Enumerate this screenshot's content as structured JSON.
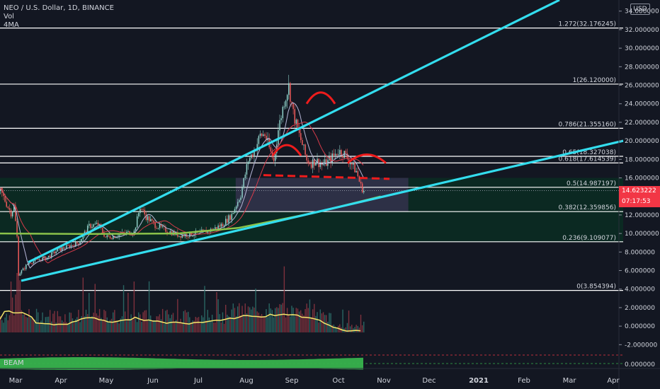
{
  "legend": {
    "title": "NEO / U.S. Dollar, 1D, BINANCE",
    "vol": "Vol",
    "ma": "4MA"
  },
  "beam_label": "BEAM",
  "currency": "USD",
  "current_price": "14.623222",
  "countdown": "07:17:53",
  "colors": {
    "background": "#131722",
    "up_candle": "#8fd1c9",
    "down_candle": "#ef5a5a",
    "trendline": "#33ddee",
    "pattern": "#ee1c1c",
    "fib_line": "#ffffff",
    "ma_200": "#8bc34a",
    "ma_red": "#d63b4a",
    "ma_light": "#b6b6d8",
    "vol_ma": "#f5e66a",
    "zone_green": "#0b2b22",
    "zone_purple": "#34314c",
    "price_badge": "#f23645",
    "beam_green": "#37b24d"
  },
  "chart_data": {
    "type": "candlestick",
    "title": "NEO / U.S. Dollar, 1D, BINANCE",
    "ylabel": "USD",
    "ylim": [
      -3.2,
      35.2
    ],
    "x_ticks": [
      "Mar",
      "Apr",
      "May",
      "Jun",
      "Jul",
      "Aug",
      "Sep",
      "Oct",
      "Nov",
      "Dec",
      "2021",
      "Feb",
      "Mar",
      "Apr"
    ],
    "y_ticks": [
      "34.000000",
      "32.000000",
      "30.000000",
      "28.000000",
      "26.000000",
      "24.000000",
      "22.000000",
      "20.000000",
      "18.000000",
      "16.000000",
      "14.000000",
      "12.000000",
      "10.000000",
      "8.000000",
      "6.000000",
      "4.000000",
      "2.000000",
      "0.000000",
      "-2.000000"
    ],
    "fib_levels": [
      {
        "label": "1.272(32.176245)",
        "value": 32.176245
      },
      {
        "label": "1(26.120000)",
        "value": 26.12
      },
      {
        "label": "0.786(21.355160)",
        "value": 21.35516
      },
      {
        "label": "0.65(18.327038)",
        "value": 18.327038
      },
      {
        "label": "0.618(17.614539)",
        "value": 17.614539
      },
      {
        "label": "0.5(14.987197)",
        "value": 14.987197
      },
      {
        "label": "0.382(12.359856)",
        "value": 12.359856
      },
      {
        "label": "0.236(9.109077)",
        "value": 9.109077
      },
      {
        "label": "0(3.854394)",
        "value": 3.854394
      }
    ],
    "price_path": [
      {
        "x": "Mar 1",
        "y": 14.6
      },
      {
        "x": "Mar 5",
        "y": 13.2
      },
      {
        "x": "Mar 8",
        "y": 12.2
      },
      {
        "x": "Mar 10",
        "y": 12.9
      },
      {
        "x": "Mar 12",
        "y": 9.6
      },
      {
        "x": "Mar 13",
        "y": 5.6
      },
      {
        "x": "Mar 16",
        "y": 6.1
      },
      {
        "x": "Mar 20",
        "y": 6.9
      },
      {
        "x": "Mar 25",
        "y": 7.1
      },
      {
        "x": "Apr 1",
        "y": 7.4
      },
      {
        "x": "Apr 8",
        "y": 8.2
      },
      {
        "x": "Apr 15",
        "y": 8.6
      },
      {
        "x": "Apr 22",
        "y": 9.0
      },
      {
        "x": "Apr 29",
        "y": 10.8
      },
      {
        "x": "May 5",
        "y": 11.0
      },
      {
        "x": "May 10",
        "y": 9.6
      },
      {
        "x": "May 15",
        "y": 9.7
      },
      {
        "x": "May 22",
        "y": 10.0
      },
      {
        "x": "May 29",
        "y": 10.2
      },
      {
        "x": "Jun 2",
        "y": 12.9
      },
      {
        "x": "Jun 6",
        "y": 11.8
      },
      {
        "x": "Jun 12",
        "y": 10.9
      },
      {
        "x": "Jun 20",
        "y": 10.3
      },
      {
        "x": "Jun 28",
        "y": 9.8
      },
      {
        "x": "Jul 5",
        "y": 9.9
      },
      {
        "x": "Jul 12",
        "y": 10.1
      },
      {
        "x": "Jul 20",
        "y": 10.4
      },
      {
        "x": "Jul 27",
        "y": 11.0
      },
      {
        "x": "Aug 2",
        "y": 12.0
      },
      {
        "x": "Aug 8",
        "y": 14.2
      },
      {
        "x": "Aug 13",
        "y": 17.9
      },
      {
        "x": "Aug 17",
        "y": 18.9
      },
      {
        "x": "Aug 21",
        "y": 20.6
      },
      {
        "x": "Aug 24",
        "y": 20.7
      },
      {
        "x": "Aug 27",
        "y": 19.2
      },
      {
        "x": "Aug 30",
        "y": 17.8
      },
      {
        "x": "Sep 2",
        "y": 21.2
      },
      {
        "x": "Sep 6",
        "y": 24.3
      },
      {
        "x": "Sep 9",
        "y": 25.9
      },
      {
        "x": "Sep 12",
        "y": 23.0
      },
      {
        "x": "Sep 15",
        "y": 21.1
      },
      {
        "x": "Sep 18",
        "y": 19.6
      },
      {
        "x": "Sep 21",
        "y": 17.9
      },
      {
        "x": "Sep 24",
        "y": 17.6
      },
      {
        "x": "Sep 27",
        "y": 17.9
      },
      {
        "x": "Oct 1",
        "y": 17.4
      },
      {
        "x": "Oct 5",
        "y": 17.7
      },
      {
        "x": "Oct 9",
        "y": 18.4
      },
      {
        "x": "Oct 12",
        "y": 18.9
      },
      {
        "x": "Oct 16",
        "y": 18.6
      },
      {
        "x": "Oct 20",
        "y": 17.7
      },
      {
        "x": "Oct 24",
        "y": 16.7
      },
      {
        "x": "Oct 27",
        "y": 15.1
      },
      {
        "x": "Oct 29",
        "y": 14.623222
      }
    ],
    "series": [
      {
        "name": "200 MA",
        "points": [
          [
            0.0,
            10.0
          ],
          [
            0.2,
            9.95
          ],
          [
            0.45,
            10.0
          ],
          [
            0.6,
            10.6
          ],
          [
            0.8,
            12.3
          ],
          [
            0.96,
            14.0
          ]
        ]
      },
      {
        "name": "BEAM",
        "values": "oscillator"
      }
    ]
  }
}
